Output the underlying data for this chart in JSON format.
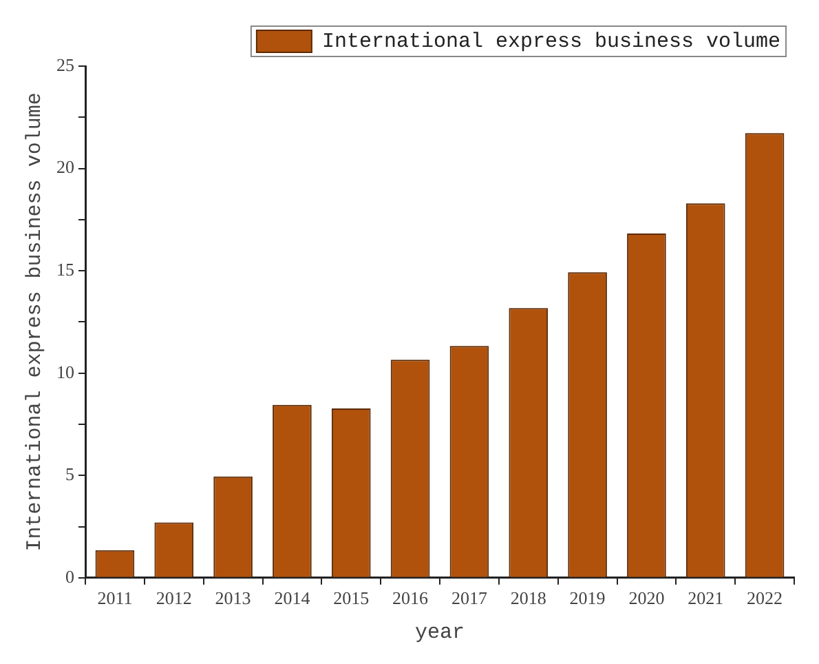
{
  "chart_data": {
    "type": "bar",
    "xlabel": "year",
    "ylabel": "International express business volume",
    "categories": [
      "2011",
      "2012",
      "2013",
      "2014",
      "2015",
      "2016",
      "2017",
      "2018",
      "2019",
      "2020",
      "2021",
      "2022"
    ],
    "series": [
      {
        "name": "International express business volume",
        "color": "#b0520c",
        "values": [
          1.35,
          2.7,
          4.95,
          8.45,
          8.27,
          10.65,
          11.33,
          13.18,
          14.93,
          16.82,
          18.29,
          21.73
        ]
      }
    ],
    "ylim": [
      0,
      25
    ],
    "yticks": [
      0,
      {
        "value": 2.5,
        "label": null
      },
      5,
      {
        "value": 7.5,
        "label": null
      },
      10,
      {
        "value": 12.5,
        "label": null
      },
      15,
      {
        "value": 17.5,
        "label": null
      },
      20,
      {
        "value": 22.5,
        "label": null
      },
      25
    ],
    "grid": false,
    "legend": "top right"
  }
}
